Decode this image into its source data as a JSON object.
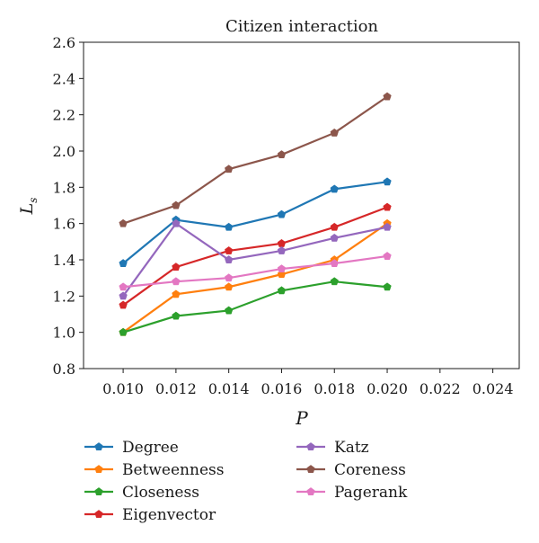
{
  "chart_data": {
    "type": "line",
    "title": "Citizen interaction",
    "xlabel": "P",
    "ylabel": "L",
    "ylabel_sub": "s",
    "xlim": [
      0.0085,
      0.025
    ],
    "ylim": [
      0.8,
      2.6
    ],
    "x_ticks": [
      "0.010",
      "0.012",
      "0.014",
      "0.016",
      "0.018",
      "0.020",
      "0.022",
      "0.024"
    ],
    "y_ticks": [
      "0.8",
      "1.0",
      "1.2",
      "1.4",
      "1.6",
      "1.8",
      "2.0",
      "2.2",
      "2.4",
      "2.6"
    ],
    "grid": false,
    "legend_position": "bottom",
    "x": [
      0.01,
      0.012,
      0.014,
      0.016,
      0.018,
      0.02
    ],
    "series": [
      {
        "name": "Degree",
        "color": "#1f77b4",
        "values": [
          1.38,
          1.62,
          1.58,
          1.65,
          1.79,
          1.83
        ]
      },
      {
        "name": "Betweenness",
        "color": "#ff7f0e",
        "values": [
          1.0,
          1.21,
          1.25,
          1.32,
          1.4,
          1.6
        ]
      },
      {
        "name": "Closeness",
        "color": "#2ca02c",
        "values": [
          1.0,
          1.09,
          1.12,
          1.23,
          1.28,
          1.25
        ]
      },
      {
        "name": "Eigenvector",
        "color": "#d62728",
        "values": [
          1.15,
          1.36,
          1.45,
          1.49,
          1.58,
          1.69
        ]
      },
      {
        "name": "Katz",
        "color": "#9467bd",
        "values": [
          1.2,
          1.6,
          1.4,
          1.45,
          1.52,
          1.58
        ]
      },
      {
        "name": "Coreness",
        "color": "#8c564b",
        "values": [
          1.6,
          1.7,
          1.9,
          1.98,
          2.1,
          2.3
        ]
      },
      {
        "name": "Pagerank",
        "color": "#e377c2",
        "values": [
          1.25,
          1.28,
          1.3,
          1.35,
          1.38,
          1.42
        ]
      }
    ],
    "legend_order": [
      "Degree",
      "Betweenness",
      "Closeness",
      "Eigenvector",
      "Katz",
      "Coreness",
      "Pagerank"
    ]
  }
}
